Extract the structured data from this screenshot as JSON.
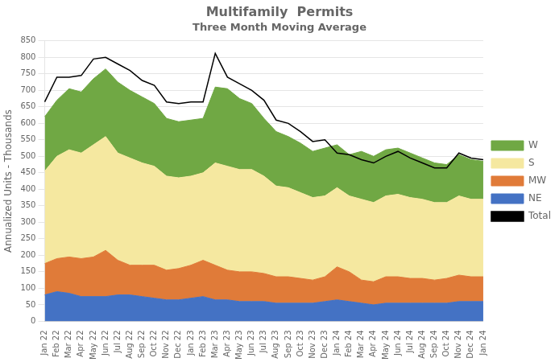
{
  "chart_data": {
    "type": "area",
    "title": "Multifamily  Permits",
    "subtitle": "Three Month Moving Average",
    "ylabel": "Annualized Units - Thousands",
    "categories": [
      "Jan 22",
      "Feb 22",
      "Mar 22",
      "Apr 22",
      "May 22",
      "Jun 22",
      "Jul 22",
      "Aug 22",
      "Sep 22",
      "Oct 22",
      "Nov 22",
      "Dec 22",
      "Jan 23",
      "Feb 23",
      "Mar 23",
      "Apr 23",
      "May 23",
      "Jun 23",
      "Jul 23",
      "Aug 23",
      "Sep 23",
      "Oct 23",
      "Nov 23",
      "Dec 23",
      "Jan 24",
      "Feb 24",
      "Mar 24",
      "Apr 24",
      "May 24",
      "Jun 24",
      "Jul 24",
      "Aug 24",
      "Sep 24",
      "Oct 24",
      "Nov 24",
      "Dec 24",
      "Jan 24"
    ],
    "series": [
      {
        "name": "NE",
        "color": "#4472C4",
        "values": [
          80,
          90,
          85,
          75,
          75,
          75,
          80,
          80,
          75,
          70,
          65,
          65,
          70,
          75,
          65,
          65,
          60,
          60,
          60,
          55,
          55,
          55,
          55,
          60,
          65,
          60,
          55,
          50,
          55,
          55,
          55,
          55,
          55,
          55,
          60,
          60,
          60
        ]
      },
      {
        "name": "MW",
        "color": "#E07B39",
        "values": [
          95,
          100,
          110,
          115,
          120,
          140,
          105,
          90,
          95,
          100,
          90,
          95,
          100,
          110,
          105,
          90,
          90,
          90,
          85,
          80,
          80,
          75,
          70,
          75,
          100,
          90,
          70,
          70,
          80,
          80,
          75,
          75,
          70,
          75,
          80,
          75,
          75
        ]
      },
      {
        "name": "S",
        "color": "#F5E8A0",
        "values": [
          280,
          310,
          325,
          320,
          340,
          345,
          325,
          325,
          310,
          300,
          285,
          275,
          270,
          265,
          310,
          315,
          310,
          310,
          295,
          275,
          270,
          260,
          250,
          245,
          240,
          230,
          245,
          240,
          245,
          250,
          245,
          240,
          235,
          230,
          240,
          235,
          235
        ]
      },
      {
        "name": "W",
        "color": "#70A844",
        "values": [
          165,
          170,
          185,
          185,
          200,
          205,
          215,
          205,
          200,
          190,
          175,
          170,
          170,
          165,
          230,
          235,
          215,
          200,
          175,
          165,
          155,
          150,
          140,
          145,
          130,
          125,
          145,
          140,
          140,
          140,
          135,
          125,
          120,
          115,
          125,
          120,
          115
        ]
      },
      {
        "name": "Total",
        "type": "line",
        "color": "#000000",
        "values": [
          665,
          740,
          740,
          745,
          795,
          800,
          780,
          760,
          730,
          715,
          665,
          660,
          665,
          665,
          812,
          740,
          720,
          700,
          670,
          610,
          600,
          575,
          545,
          550,
          510,
          505,
          490,
          480,
          500,
          515,
          495,
          480,
          465,
          465,
          510,
          495,
          490
        ]
      }
    ],
    "stacked": true,
    "ylim": [
      0,
      850
    ],
    "yticks": [
      0,
      50,
      100,
      150,
      200,
      250,
      300,
      350,
      400,
      450,
      500,
      550,
      600,
      650,
      700,
      750,
      800,
      850
    ],
    "grid": true,
    "legend": "right"
  }
}
